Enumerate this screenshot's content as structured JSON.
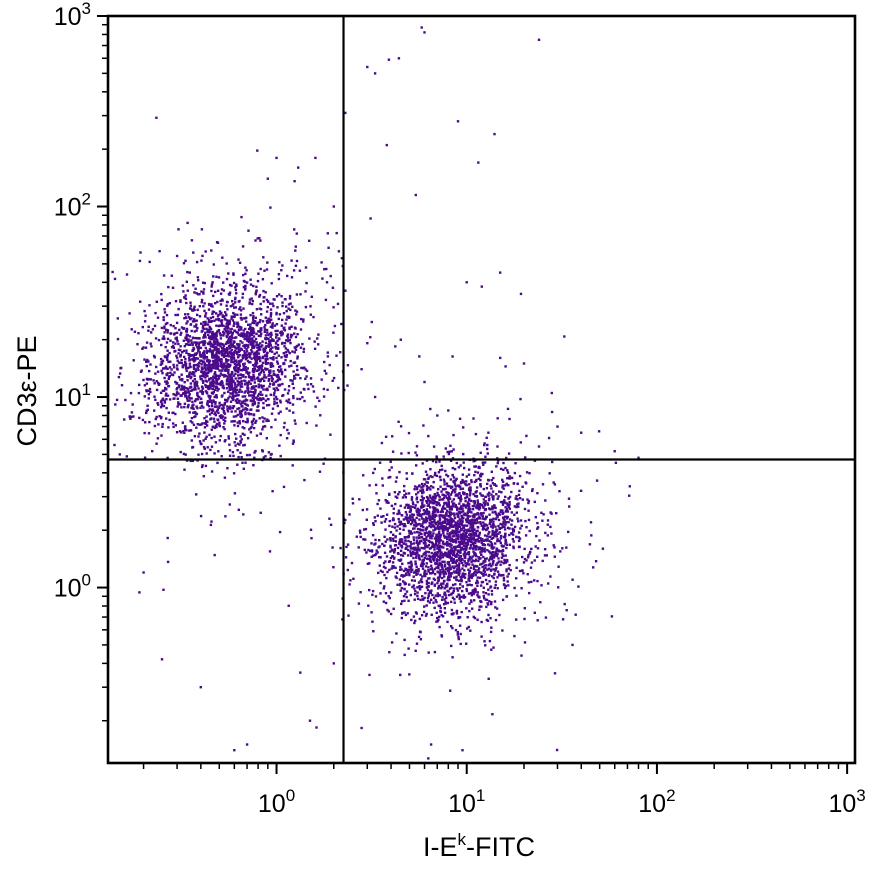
{
  "chart_data": {
    "type": "scatter",
    "title": "",
    "xlabel": {
      "base": "I-E",
      "sup": "k",
      "suffix": "-FITC"
    },
    "ylabel": "CD3ε-PE",
    "x_scale": "log",
    "y_scale": "log",
    "xlim": [
      0.13,
      1100
    ],
    "ylim": [
      0.12,
      1000
    ],
    "x_ticks": [
      {
        "base": "10",
        "exp": "0",
        "value": 1
      },
      {
        "base": "10",
        "exp": "1",
        "value": 10
      },
      {
        "base": "10",
        "exp": "2",
        "value": 100
      },
      {
        "base": "10",
        "exp": "3",
        "value": 1000
      }
    ],
    "y_ticks": [
      {
        "base": "10",
        "exp": "0",
        "value": 1
      },
      {
        "base": "10",
        "exp": "1",
        "value": 10
      },
      {
        "base": "10",
        "exp": "2",
        "value": 100
      },
      {
        "base": "10",
        "exp": "3",
        "value": 1000
      }
    ],
    "quadrant_gates": {
      "x": 2.25,
      "y": 4.7
    },
    "point_color": "#4b0a8c",
    "grid": false,
    "populations": [
      {
        "center_x": 0.55,
        "center_y": 15,
        "spread_x_log": 0.2,
        "spread_y_log": 0.2,
        "approx_count": 2600
      },
      {
        "center_x": 8.5,
        "center_y": 1.8,
        "spread_x_log": 0.19,
        "spread_y_log": 0.19,
        "approx_count": 2700
      }
    ],
    "scattered_points": [
      [
        5.8,
        870
      ],
      [
        6.0,
        820
      ],
      [
        24,
        750
      ],
      [
        14,
        1000
      ],
      [
        16,
        1000
      ],
      [
        27,
        1000
      ],
      [
        3.0,
        540
      ],
      [
        3.3,
        500
      ],
      [
        3.9,
        590
      ],
      [
        4.4,
        600
      ],
      [
        2.3,
        310
      ],
      [
        9.0,
        280
      ],
      [
        14,
        240
      ],
      [
        3.8,
        210
      ],
      [
        5.4,
        115
      ],
      [
        11.5,
        170
      ],
      [
        1.0,
        180
      ],
      [
        1.3,
        160
      ],
      [
        1.6,
        180
      ],
      [
        2.0,
        100
      ],
      [
        0.9,
        140
      ],
      [
        10,
        40
      ],
      [
        12,
        38
      ],
      [
        15,
        45
      ],
      [
        4.5,
        20
      ],
      [
        6.0,
        12
      ],
      [
        8.0,
        8.5
      ],
      [
        30,
        7.0
      ],
      [
        20,
        15
      ],
      [
        28,
        10.5
      ],
      [
        40,
        6.5
      ],
      [
        60,
        5.2
      ],
      [
        72,
        3.4
      ],
      [
        80,
        4.8
      ],
      [
        45,
        2.2
      ],
      [
        52,
        1.6
      ],
      [
        3.3,
        10.0
      ],
      [
        2.8,
        14
      ],
      [
        7.0,
        8.0
      ],
      [
        13,
        6.5
      ],
      [
        24,
        5.5
      ],
      [
        36,
        0.5
      ],
      [
        0.25,
        0.42
      ],
      [
        0.2,
        1.2
      ],
      [
        0.4,
        0.3
      ],
      [
        0.7,
        0.15
      ],
      [
        0.6,
        0.14
      ],
      [
        1.5,
        0.2
      ],
      [
        2.0,
        0.4
      ],
      [
        9.5,
        0.14
      ],
      [
        12,
        0.12
      ],
      [
        6.5,
        0.15
      ],
      [
        0.12,
        10
      ],
      [
        0.15,
        5.0
      ],
      [
        0.18,
        22
      ],
      [
        0.3,
        55
      ],
      [
        0.35,
        45
      ]
    ]
  }
}
